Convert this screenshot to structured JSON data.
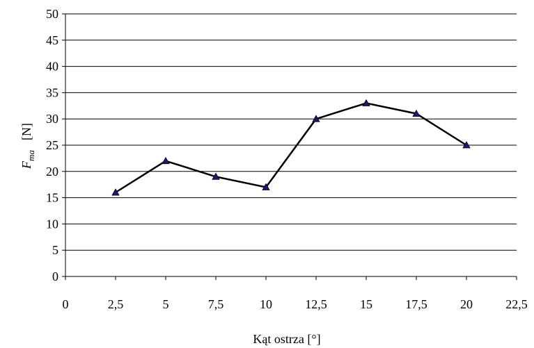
{
  "chart_data": {
    "type": "line",
    "title": "",
    "xlabel": "Kąt ostrza [°]",
    "ylabel": {
      "symbol": "F",
      "subscript": "ma",
      "unit": "[N]"
    },
    "xlim": [
      0,
      22.5
    ],
    "ylim": [
      0,
      50
    ],
    "x_ticks": [
      {
        "value": 0,
        "label": "0"
      },
      {
        "value": 2.5,
        "label": "2,5"
      },
      {
        "value": 5,
        "label": "5"
      },
      {
        "value": 7.5,
        "label": "7,5"
      },
      {
        "value": 10,
        "label": "10"
      },
      {
        "value": 12.5,
        "label": "12,5"
      },
      {
        "value": 15,
        "label": "15"
      },
      {
        "value": 17.5,
        "label": "17,5"
      },
      {
        "value": 20,
        "label": "20"
      },
      {
        "value": 22.5,
        "label": "22,5"
      }
    ],
    "y_ticks": [
      {
        "value": 0,
        "label": "0"
      },
      {
        "value": 5,
        "label": "5"
      },
      {
        "value": 10,
        "label": "10"
      },
      {
        "value": 15,
        "label": "15"
      },
      {
        "value": 20,
        "label": "20"
      },
      {
        "value": 25,
        "label": "25"
      },
      {
        "value": 30,
        "label": "30"
      },
      {
        "value": 35,
        "label": "35"
      },
      {
        "value": 40,
        "label": "40"
      },
      {
        "value": 45,
        "label": "45"
      },
      {
        "value": 50,
        "label": "50"
      }
    ],
    "grid": "horizontal",
    "series": [
      {
        "marker": "triangle",
        "color": "#000000",
        "marker_color": "#1a1a6e",
        "x": [
          2.5,
          5,
          7.5,
          10,
          12.5,
          15,
          17.5,
          20
        ],
        "y": [
          16,
          22,
          19,
          17,
          30,
          33,
          31,
          25
        ]
      }
    ]
  }
}
